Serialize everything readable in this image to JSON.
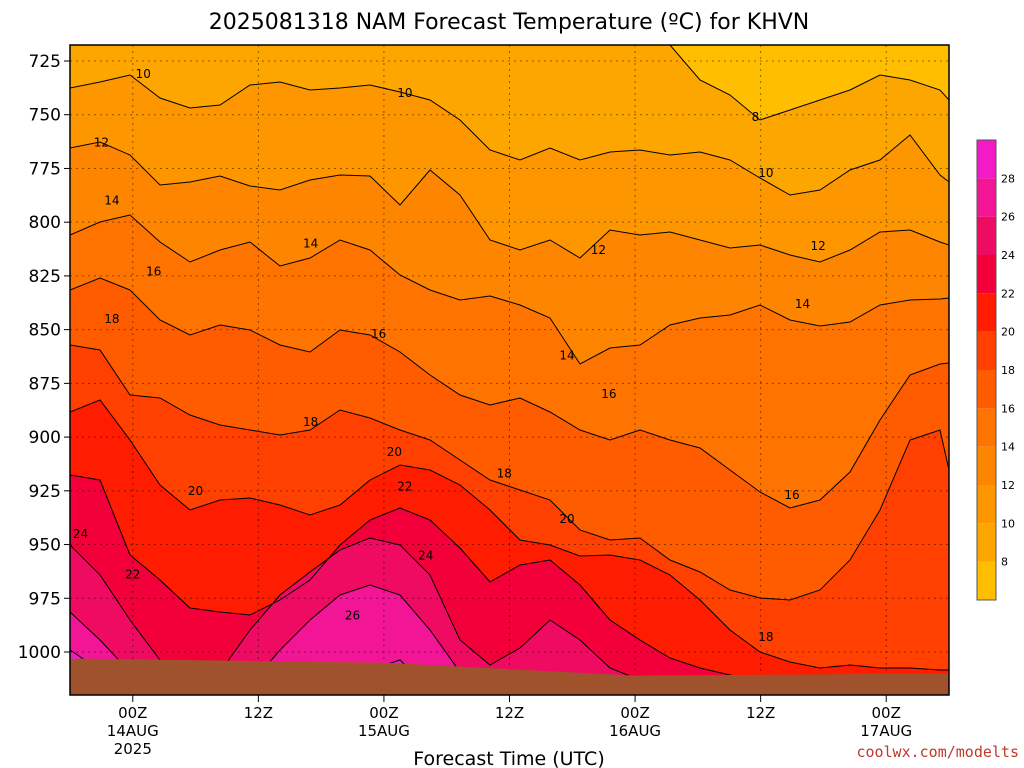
{
  "chart_data": {
    "type": "heatmap",
    "title": "2025081318 NAM Forecast Temperature (ºC) for KHVN",
    "xlabel": "Forecast Time (UTC)",
    "ylabel": "",
    "credit": "coolwx.com/modelts",
    "y_axis": {
      "ticks": [
        725,
        750,
        775,
        800,
        825,
        850,
        875,
        900,
        925,
        950,
        975,
        1000
      ],
      "range": [
        1020,
        715
      ],
      "units": "hPa"
    },
    "x_axis": {
      "ticks": [
        {
          "hour": 6,
          "label": "00Z",
          "date": "14AUG",
          "year": "2025"
        },
        {
          "hour": 18,
          "label": "12Z",
          "date": "",
          "year": ""
        },
        {
          "hour": 30,
          "label": "00Z",
          "date": "15AUG",
          "year": ""
        },
        {
          "hour": 42,
          "label": "12Z",
          "date": "",
          "year": ""
        },
        {
          "hour": 54,
          "label": "00Z",
          "date": "16AUG",
          "year": ""
        },
        {
          "hour": 66,
          "label": "12Z",
          "date": "",
          "year": ""
        },
        {
          "hour": 78,
          "label": "00Z",
          "date": "17AUG",
          "year": ""
        }
      ],
      "range": [
        0,
        84
      ]
    },
    "colorbar": {
      "levels": [
        6,
        8,
        10,
        12,
        14,
        16,
        18,
        20,
        22,
        24,
        26,
        28,
        30
      ],
      "labels": [
        8,
        10,
        12,
        14,
        16,
        18,
        20,
        22,
        24,
        26,
        28
      ],
      "colors": [
        "#ffbf00",
        "#fea600",
        "#fe9600",
        "#fe8500",
        "#ff7300",
        "#ff5c00",
        "#ff4000",
        "#ff1c00",
        "#f3003a",
        "#ef0a62",
        "#f21696",
        "#f51ac8"
      ]
    },
    "contour_labels": [
      {
        "text": "8",
        "hour": 65.5,
        "p": 751
      },
      {
        "text": "10",
        "hour": 7,
        "p": 731
      },
      {
        "text": "10",
        "hour": 32,
        "p": 740
      },
      {
        "text": "10",
        "hour": 66.5,
        "p": 777
      },
      {
        "text": "12",
        "hour": 3,
        "p": 763
      },
      {
        "text": "12",
        "hour": 50.5,
        "p": 813
      },
      {
        "text": "12",
        "hour": 71.5,
        "p": 811
      },
      {
        "text": "14",
        "hour": 4,
        "p": 790
      },
      {
        "text": "14",
        "hour": 23,
        "p": 810
      },
      {
        "text": "14",
        "hour": 47.5,
        "p": 862
      },
      {
        "text": "14",
        "hour": 70,
        "p": 838
      },
      {
        "text": "16",
        "hour": 8,
        "p": 823
      },
      {
        "text": "16",
        "hour": 29.5,
        "p": 852
      },
      {
        "text": "16",
        "hour": 51.5,
        "p": 880
      },
      {
        "text": "16",
        "hour": 69,
        "p": 927
      },
      {
        "text": "18",
        "hour": 4,
        "p": 845
      },
      {
        "text": "18",
        "hour": 23,
        "p": 893
      },
      {
        "text": "18",
        "hour": 41.5,
        "p": 917
      },
      {
        "text": "18",
        "hour": 66.5,
        "p": 993
      },
      {
        "text": "20",
        "hour": 12,
        "p": 925
      },
      {
        "text": "20",
        "hour": 31,
        "p": 907
      },
      {
        "text": "20",
        "hour": 47.5,
        "p": 938
      },
      {
        "text": "22",
        "hour": 6,
        "p": 964
      },
      {
        "text": "22",
        "hour": 32,
        "p": 923
      },
      {
        "text": "24",
        "hour": 1,
        "p": 945
      },
      {
        "text": "24",
        "hour": 34,
        "p": 955
      },
      {
        "text": "26",
        "hour": 27,
        "p": 983
      }
    ],
    "ground": {
      "color": "#a0522d",
      "surface_pressure": [
        {
          "hour": 0,
          "p": 1003
        },
        {
          "hour": 30,
          "p": 1005
        },
        {
          "hour": 54,
          "p": 1011
        },
        {
          "hour": 84,
          "p": 1010
        }
      ]
    },
    "grid": true
  }
}
